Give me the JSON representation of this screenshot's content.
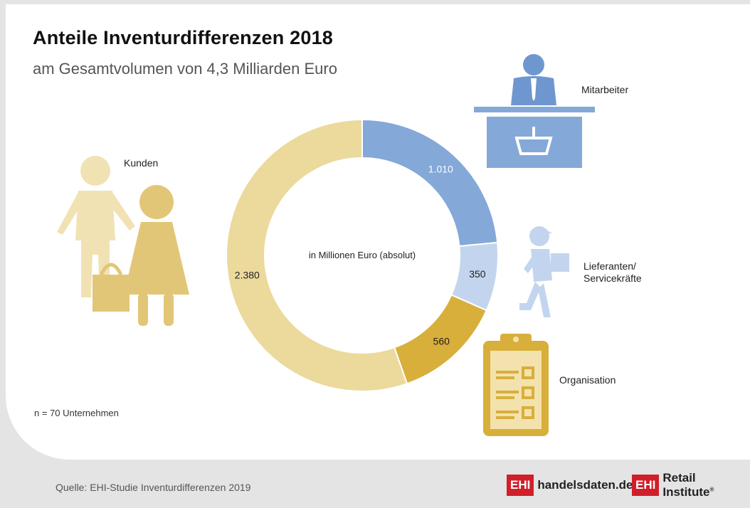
{
  "header": {
    "title": "Anteile Inventurdifferenzen 2018",
    "subtitle": "am Gesamtvolumen von 4,3 Milliarden Euro"
  },
  "chart_data": {
    "type": "pie",
    "title": "Anteile Inventurdifferenzen 2018",
    "subtitle": "am Gesamtvolumen von 4,3 Milliarden Euro",
    "center_label": "in Millionen Euro (absolut)",
    "series": [
      {
        "name": "Mitarbeiter",
        "value": 1010,
        "display": "1.010",
        "color": "#84a8d8"
      },
      {
        "name": "Lieferanten/ Servicekräfte",
        "value": 350,
        "display": "350",
        "color": "#c3d5ee"
      },
      {
        "name": "Organisation",
        "value": 560,
        "display": "560",
        "color": "#d8af3a"
      },
      {
        "name": "Kunden",
        "value": 2380,
        "display": "2.380",
        "color": "#ecd99c"
      }
    ]
  },
  "labels": {
    "mitarbeiter": "Mitarbeiter",
    "lieferanten_line1": "Lieferanten/",
    "lieferanten_line2": "Servicekräfte",
    "organisation": "Organisation",
    "kunden": "Kunden"
  },
  "footer": {
    "note": "n = 70 Unternehmen",
    "source": "Quelle: EHI-Studie Inventurdifferenzen 2019",
    "logo1_box": "EHI",
    "logo1_text": "handelsdaten.de",
    "logo2_box": "EHI",
    "logo2_text": "Retail Institute",
    "logo2_mark": "®"
  },
  "icons": {
    "mitarbeiter": "cashier-desk-icon",
    "lieferanten": "delivery-person-icon",
    "organisation": "clipboard-checklist-icon",
    "kunden": "customers-icon"
  }
}
